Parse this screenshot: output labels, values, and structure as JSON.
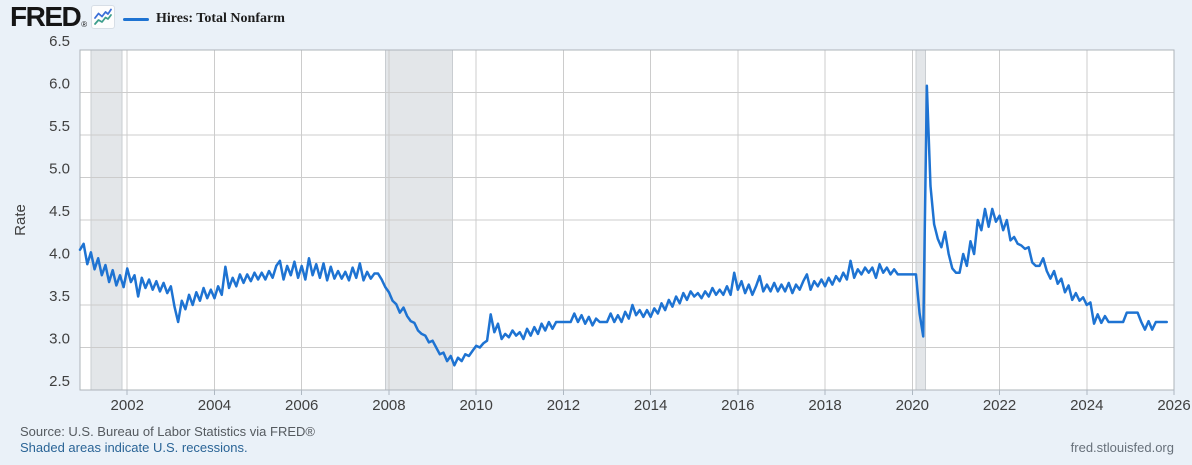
{
  "header": {
    "logo_text": "FRED",
    "registered_mark": "®",
    "legend_label": "Hires: Total Nonfarm"
  },
  "footer": {
    "source_line": "Source: U.S. Bureau of Labor Statistics via FRED®",
    "shaded_note": "Shaded areas indicate U.S. recessions.",
    "site_link": "fred.stlouisfed.org"
  },
  "colors": {
    "background": "#eaf1f8",
    "plot_background": "#ffffff",
    "line": "#1e73d2",
    "grid": "#cccccc",
    "plot_border": "#aeb4ba",
    "recession_band": "#e3e6e9",
    "recession_band_edge": "#c9cdd1",
    "axis_text": "#404040",
    "tick_stub": "#aeb8c2",
    "logo_line_blue": "#3a6fd8",
    "logo_line_teal": "#3d9e8c"
  },
  "chart_data": {
    "type": "line",
    "title": "Hires: Total Nonfarm",
    "xlabel": "",
    "ylabel": "Rate",
    "legend_position": "top-left",
    "grid": true,
    "ylim": [
      2.5,
      6.5
    ],
    "y_ticks": [
      2.5,
      3.0,
      3.5,
      4.0,
      4.5,
      5.0,
      5.5,
      6.0,
      6.5
    ],
    "x_ticks": [
      2002,
      2004,
      2006,
      2008,
      2010,
      2012,
      2014,
      2016,
      2018,
      2020,
      2022,
      2024,
      2026
    ],
    "x_range_years": [
      2000.9167,
      2026.0
    ],
    "recessions": [
      {
        "label": "2001 recession",
        "start": 2001.167,
        "end": 2001.875
      },
      {
        "label": "2007-2009 recession",
        "start": 2007.917,
        "end": 2009.46
      },
      {
        "label": "2020 recession",
        "start": 2020.085,
        "end": 2020.3
      }
    ],
    "series": [
      {
        "name": "Hires: Total Nonfarm",
        "units": "Rate",
        "frequency": "monthly",
        "start_period": "2000-12",
        "end_period": "2025-11",
        "values": [
          4.15,
          4.22,
          3.98,
          4.12,
          3.92,
          4.05,
          3.85,
          3.97,
          3.77,
          3.91,
          3.73,
          3.85,
          3.71,
          3.93,
          3.77,
          3.85,
          3.6,
          3.82,
          3.7,
          3.8,
          3.68,
          3.78,
          3.66,
          3.76,
          3.64,
          3.72,
          3.48,
          3.3,
          3.55,
          3.45,
          3.62,
          3.5,
          3.65,
          3.55,
          3.7,
          3.58,
          3.68,
          3.58,
          3.72,
          3.62,
          3.95,
          3.7,
          3.82,
          3.72,
          3.86,
          3.76,
          3.86,
          3.78,
          3.88,
          3.8,
          3.88,
          3.8,
          3.9,
          3.82,
          3.96,
          4.02,
          3.8,
          3.96,
          3.85,
          4.01,
          3.82,
          3.96,
          3.8,
          4.05,
          3.85,
          3.98,
          3.82,
          3.99,
          3.79,
          3.95,
          3.81,
          3.9,
          3.81,
          3.89,
          3.79,
          3.94,
          3.82,
          3.99,
          3.79,
          3.89,
          3.81,
          3.87,
          3.87,
          3.8,
          3.71,
          3.65,
          3.55,
          3.51,
          3.41,
          3.47,
          3.37,
          3.31,
          3.29,
          3.2,
          3.16,
          3.14,
          3.06,
          3.08,
          3.0,
          2.92,
          2.94,
          2.84,
          2.9,
          2.79,
          2.88,
          2.84,
          2.92,
          2.9,
          2.96,
          3.02,
          3.0,
          3.05,
          3.08,
          3.39,
          3.18,
          3.28,
          3.1,
          3.16,
          3.12,
          3.2,
          3.14,
          3.18,
          3.1,
          3.22,
          3.14,
          3.24,
          3.16,
          3.28,
          3.2,
          3.3,
          3.22,
          3.3,
          3.3,
          3.3,
          3.3,
          3.3,
          3.4,
          3.3,
          3.38,
          3.28,
          3.36,
          3.26,
          3.34,
          3.3,
          3.3,
          3.3,
          3.4,
          3.3,
          3.38,
          3.3,
          3.42,
          3.34,
          3.5,
          3.38,
          3.44,
          3.36,
          3.44,
          3.36,
          3.46,
          3.4,
          3.52,
          3.44,
          3.56,
          3.48,
          3.6,
          3.52,
          3.64,
          3.56,
          3.66,
          3.6,
          3.64,
          3.58,
          3.66,
          3.6,
          3.7,
          3.62,
          3.68,
          3.62,
          3.72,
          3.62,
          3.88,
          3.68,
          3.78,
          3.64,
          3.74,
          3.62,
          3.72,
          3.84,
          3.66,
          3.74,
          3.66,
          3.76,
          3.66,
          3.74,
          3.66,
          3.76,
          3.64,
          3.74,
          3.68,
          3.78,
          3.86,
          3.68,
          3.78,
          3.72,
          3.8,
          3.72,
          3.82,
          3.74,
          3.84,
          3.78,
          3.88,
          3.8,
          4.02,
          3.82,
          3.92,
          3.86,
          3.94,
          3.88,
          3.94,
          3.82,
          3.98,
          3.88,
          3.94,
          3.86,
          3.92,
          3.86,
          3.86,
          3.86,
          3.86,
          3.86,
          3.86,
          3.4,
          3.13,
          6.08,
          4.9,
          4.45,
          4.28,
          4.18,
          4.36,
          4.1,
          3.93,
          3.88,
          3.88,
          4.1,
          3.96,
          4.25,
          4.1,
          4.5,
          4.38,
          4.63,
          4.42,
          4.63,
          4.48,
          4.55,
          4.38,
          4.5,
          4.26,
          4.3,
          4.22,
          4.2,
          4.16,
          4.18,
          4.0,
          3.96,
          3.96,
          4.05,
          3.9,
          3.81,
          3.9,
          3.75,
          3.81,
          3.65,
          3.73,
          3.56,
          3.64,
          3.55,
          3.59,
          3.5,
          3.53,
          3.28,
          3.39,
          3.29,
          3.37,
          3.3,
          3.3,
          3.3,
          3.3,
          3.3,
          3.41,
          3.41,
          3.41,
          3.41,
          3.3,
          3.21,
          3.31,
          3.21,
          3.3,
          3.3,
          3.3,
          3.3
        ]
      }
    ]
  }
}
